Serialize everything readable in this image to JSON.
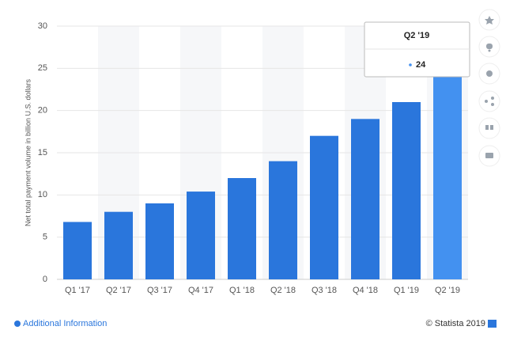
{
  "chart_data": {
    "type": "bar",
    "y_label": "Net total payment volume in billion U.S. dollars",
    "categories": [
      "Q1 '17",
      "Q2 '17",
      "Q3 '17",
      "Q4 '17",
      "Q1 '18",
      "Q2 '18",
      "Q3 '18",
      "Q4 '18",
      "Q1 '19",
      "Q2 '19"
    ],
    "values": [
      6.8,
      8,
      9,
      10.4,
      12,
      14,
      17,
      19,
      21,
      24
    ],
    "colors": [
      "#2a76dc",
      "#2a76dc",
      "#2a76dc",
      "#2a76dc",
      "#2a76dc",
      "#2a76dc",
      "#2a76dc",
      "#2a76dc",
      "#2a76dc",
      "#4391f0"
    ],
    "ylim": [
      0,
      30
    ],
    "yticks": [
      0,
      5,
      10,
      15,
      20,
      25,
      30
    ],
    "grid": true
  },
  "footer": {
    "info": "Additional Information",
    "source": "© Statista 2019"
  }
}
